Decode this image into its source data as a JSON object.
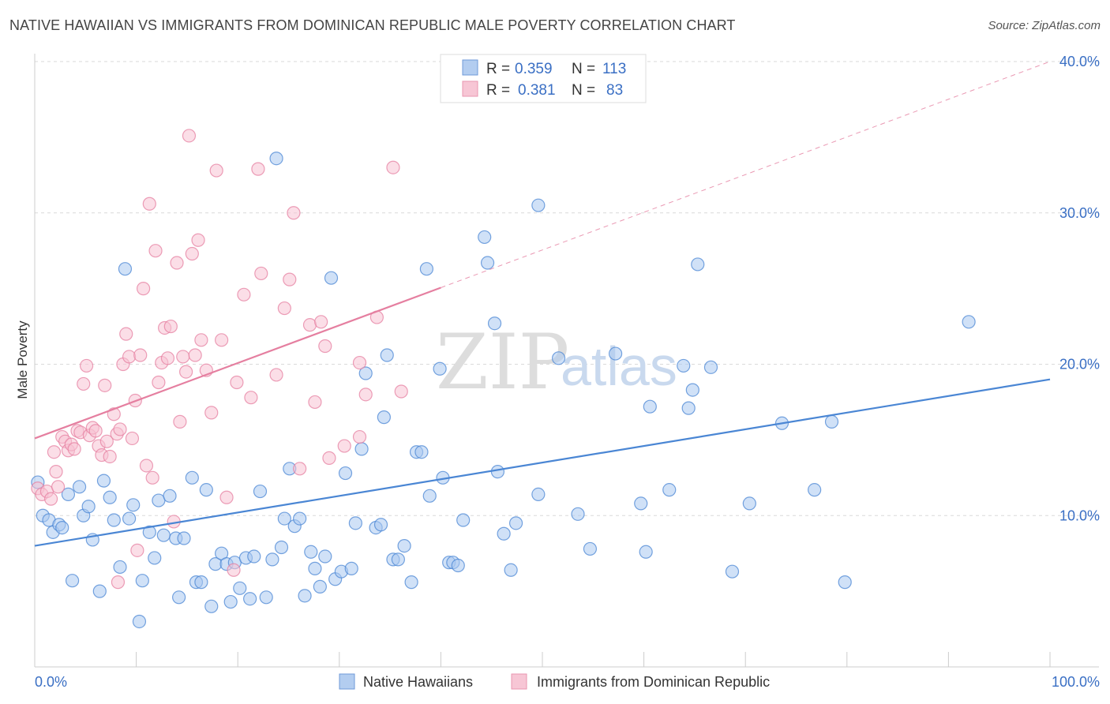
{
  "title": "NATIVE HAWAIIAN VS IMMIGRANTS FROM DOMINICAN REPUBLIC MALE POVERTY CORRELATION CHART",
  "source": "Source: ZipAtlas.com",
  "watermark": {
    "zip": "ZIP",
    "atlas": "atlas"
  },
  "chart_data": {
    "type": "scatter",
    "title": "NATIVE HAWAIIAN VS IMMIGRANTS FROM DOMINICAN REPUBLIC MALE POVERTY CORRELATION CHART",
    "xlabel": "",
    "ylabel": "Male Poverty",
    "xlim": [
      0,
      100
    ],
    "ylim": [
      0,
      42
    ],
    "x_tick_labels": [
      {
        "value": 0,
        "label": "0.0%"
      },
      {
        "value": 100,
        "label": "100.0%"
      }
    ],
    "x_minor_ticks": [
      0,
      10,
      20,
      30,
      40,
      50,
      60,
      70,
      80,
      90,
      100
    ],
    "y_ticks": [
      {
        "value": 10,
        "label": "10.0%"
      },
      {
        "value": 20,
        "label": "20.0%"
      },
      {
        "value": 30,
        "label": "30.0%"
      },
      {
        "value": 40,
        "label": "40.0%"
      }
    ],
    "legend": [
      {
        "r_label": "R =",
        "r": "0.359",
        "n_label": "N =",
        "n": "113",
        "color": "#8fb6ea",
        "stroke": "#4a86d4"
      },
      {
        "r_label": "R =",
        "r": "0.381",
        "n_label": "N =",
        "n": "83",
        "color": "#f4b0c6",
        "stroke": "#e57fa0"
      }
    ],
    "series": [
      {
        "name": "Native Hawaiians",
        "color": "#4a86d4",
        "fill": "#a9c8f0",
        "trend": {
          "x0": 0,
          "y0": 8.0,
          "x1": 100,
          "y1": 19.0,
          "dashed_from": null
        },
        "points": [
          [
            0.3,
            12.2
          ],
          [
            0.8,
            10.0
          ],
          [
            1.4,
            9.7
          ],
          [
            1.8,
            8.9
          ],
          [
            2.4,
            9.4
          ],
          [
            2.7,
            9.2
          ],
          [
            3.3,
            11.4
          ],
          [
            3.7,
            5.7
          ],
          [
            4.4,
            11.9
          ],
          [
            4.8,
            10.0
          ],
          [
            5.3,
            10.6
          ],
          [
            5.7,
            8.4
          ],
          [
            6.4,
            5.0
          ],
          [
            6.8,
            12.3
          ],
          [
            7.4,
            11.2
          ],
          [
            7.8,
            9.7
          ],
          [
            8.4,
            6.6
          ],
          [
            8.9,
            26.3
          ],
          [
            9.3,
            9.8
          ],
          [
            9.7,
            10.7
          ],
          [
            10.3,
            3.0
          ],
          [
            10.6,
            5.7
          ],
          [
            11.3,
            8.9
          ],
          [
            11.8,
            7.2
          ],
          [
            12.2,
            11.0
          ],
          [
            12.7,
            8.7
          ],
          [
            13.3,
            11.3
          ],
          [
            13.9,
            8.5
          ],
          [
            14.2,
            4.6
          ],
          [
            14.7,
            8.5
          ],
          [
            15.5,
            12.5
          ],
          [
            15.9,
            5.6
          ],
          [
            16.4,
            5.6
          ],
          [
            16.9,
            11.7
          ],
          [
            17.4,
            4.0
          ],
          [
            17.8,
            6.8
          ],
          [
            18.4,
            7.5
          ],
          [
            18.9,
            6.8
          ],
          [
            19.3,
            4.3
          ],
          [
            19.7,
            6.9
          ],
          [
            20.2,
            5.2
          ],
          [
            20.8,
            7.2
          ],
          [
            21.2,
            4.5
          ],
          [
            21.6,
            7.3
          ],
          [
            22.2,
            11.6
          ],
          [
            22.8,
            4.6
          ],
          [
            23.4,
            7.1
          ],
          [
            23.8,
            33.6
          ],
          [
            24.3,
            7.9
          ],
          [
            24.6,
            9.8
          ],
          [
            25.1,
            13.1
          ],
          [
            25.6,
            9.3
          ],
          [
            26.1,
            9.8
          ],
          [
            26.6,
            4.7
          ],
          [
            27.2,
            7.6
          ],
          [
            27.6,
            6.5
          ],
          [
            28.1,
            5.3
          ],
          [
            28.6,
            7.3
          ],
          [
            29.2,
            25.7
          ],
          [
            29.6,
            5.8
          ],
          [
            30.2,
            6.3
          ],
          [
            30.6,
            12.8
          ],
          [
            31.2,
            6.5
          ],
          [
            31.6,
            9.5
          ],
          [
            32.2,
            14.4
          ],
          [
            32.6,
            19.4
          ],
          [
            33.6,
            9.2
          ],
          [
            34.1,
            9.4
          ],
          [
            34.4,
            16.5
          ],
          [
            34.7,
            20.6
          ],
          [
            35.3,
            7.1
          ],
          [
            35.8,
            7.1
          ],
          [
            36.4,
            8.0
          ],
          [
            37.1,
            5.6
          ],
          [
            37.6,
            14.2
          ],
          [
            38.1,
            14.2
          ],
          [
            38.6,
            26.3
          ],
          [
            38.9,
            11.3
          ],
          [
            39.9,
            19.7
          ],
          [
            40.2,
            12.5
          ],
          [
            40.8,
            6.9
          ],
          [
            41.2,
            6.9
          ],
          [
            41.7,
            6.7
          ],
          [
            42.2,
            9.7
          ],
          [
            44.3,
            28.4
          ],
          [
            44.6,
            26.7
          ],
          [
            45.3,
            22.7
          ],
          [
            45.6,
            12.9
          ],
          [
            46.2,
            8.8
          ],
          [
            46.9,
            6.4
          ],
          [
            47.4,
            9.5
          ],
          [
            49.6,
            30.5
          ],
          [
            49.6,
            11.4
          ],
          [
            51.6,
            20.4
          ],
          [
            53.5,
            10.1
          ],
          [
            54.7,
            7.8
          ],
          [
            57.2,
            20.7
          ],
          [
            59.7,
            10.8
          ],
          [
            60.2,
            7.6
          ],
          [
            60.6,
            17.2
          ],
          [
            62.5,
            11.7
          ],
          [
            63.9,
            19.9
          ],
          [
            64.4,
            17.1
          ],
          [
            64.8,
            18.3
          ],
          [
            65.3,
            26.6
          ],
          [
            66.6,
            19.8
          ],
          [
            68.7,
            6.3
          ],
          [
            70.4,
            10.8
          ],
          [
            73.6,
            16.1
          ],
          [
            76.8,
            11.7
          ],
          [
            78.5,
            16.2
          ],
          [
            79.8,
            5.6
          ],
          [
            92.0,
            22.8
          ]
        ]
      },
      {
        "name": "Immigrants from Dominican Republic",
        "color": "#e57fa0",
        "fill": "#f7c3d3",
        "trend": {
          "x0": 0,
          "y0": 15.1,
          "x1": 100,
          "y1": 40.0,
          "dashed_from": 40
        },
        "points": [
          [
            0.3,
            11.8
          ],
          [
            0.7,
            11.4
          ],
          [
            1.2,
            11.6
          ],
          [
            1.6,
            11.1
          ],
          [
            1.9,
            14.2
          ],
          [
            2.1,
            12.9
          ],
          [
            2.3,
            11.9
          ],
          [
            2.7,
            15.2
          ],
          [
            3.0,
            14.9
          ],
          [
            3.3,
            14.3
          ],
          [
            3.6,
            14.7
          ],
          [
            3.9,
            14.4
          ],
          [
            4.2,
            15.6
          ],
          [
            4.5,
            15.5
          ],
          [
            4.8,
            18.7
          ],
          [
            5.1,
            19.9
          ],
          [
            5.4,
            15.3
          ],
          [
            5.7,
            15.8
          ],
          [
            6.0,
            15.6
          ],
          [
            6.3,
            14.6
          ],
          [
            6.6,
            14.0
          ],
          [
            6.9,
            18.6
          ],
          [
            7.1,
            14.9
          ],
          [
            7.4,
            13.9
          ],
          [
            7.8,
            16.7
          ],
          [
            8.1,
            15.4
          ],
          [
            8.4,
            15.7
          ],
          [
            8.7,
            20.0
          ],
          [
            9.0,
            22.0
          ],
          [
            9.3,
            20.5
          ],
          [
            9.6,
            15.1
          ],
          [
            9.9,
            17.6
          ],
          [
            10.1,
            7.7
          ],
          [
            10.4,
            20.6
          ],
          [
            10.7,
            25.0
          ],
          [
            11.0,
            13.3
          ],
          [
            11.3,
            30.6
          ],
          [
            11.6,
            12.5
          ],
          [
            11.9,
            27.5
          ],
          [
            12.2,
            18.8
          ],
          [
            12.5,
            20.1
          ],
          [
            12.8,
            22.4
          ],
          [
            13.1,
            20.4
          ],
          [
            13.4,
            22.5
          ],
          [
            13.7,
            9.6
          ],
          [
            14.0,
            26.7
          ],
          [
            14.3,
            16.2
          ],
          [
            14.6,
            20.5
          ],
          [
            14.9,
            19.5
          ],
          [
            15.2,
            35.1
          ],
          [
            15.5,
            27.3
          ],
          [
            15.8,
            20.6
          ],
          [
            16.1,
            28.2
          ],
          [
            16.4,
            21.6
          ],
          [
            16.9,
            19.6
          ],
          [
            17.4,
            16.8
          ],
          [
            17.9,
            32.8
          ],
          [
            18.4,
            21.6
          ],
          [
            18.9,
            11.2
          ],
          [
            19.6,
            6.4
          ],
          [
            19.9,
            18.8
          ],
          [
            20.6,
            24.6
          ],
          [
            21.3,
            17.8
          ],
          [
            22.0,
            32.9
          ],
          [
            22.3,
            26.0
          ],
          [
            23.8,
            19.3
          ],
          [
            24.6,
            23.7
          ],
          [
            25.1,
            25.6
          ],
          [
            25.5,
            30.0
          ],
          [
            26.1,
            13.1
          ],
          [
            27.1,
            22.6
          ],
          [
            27.6,
            17.5
          ],
          [
            28.2,
            22.8
          ],
          [
            28.6,
            21.2
          ],
          [
            29.0,
            13.8
          ],
          [
            30.5,
            14.6
          ],
          [
            32.0,
            15.2
          ],
          [
            32.6,
            18.0
          ],
          [
            33.7,
            23.1
          ],
          [
            35.3,
            33.0
          ],
          [
            36.1,
            18.2
          ],
          [
            32.0,
            20.1
          ],
          [
            8.2,
            5.6
          ]
        ]
      }
    ]
  },
  "bottom_legend": [
    {
      "label": "Native Hawaiians",
      "color": "#a9c8f0",
      "stroke": "#4a86d4"
    },
    {
      "label": "Immigrants from Dominican Republic",
      "color": "#f7c3d3",
      "stroke": "#e57fa0"
    }
  ]
}
